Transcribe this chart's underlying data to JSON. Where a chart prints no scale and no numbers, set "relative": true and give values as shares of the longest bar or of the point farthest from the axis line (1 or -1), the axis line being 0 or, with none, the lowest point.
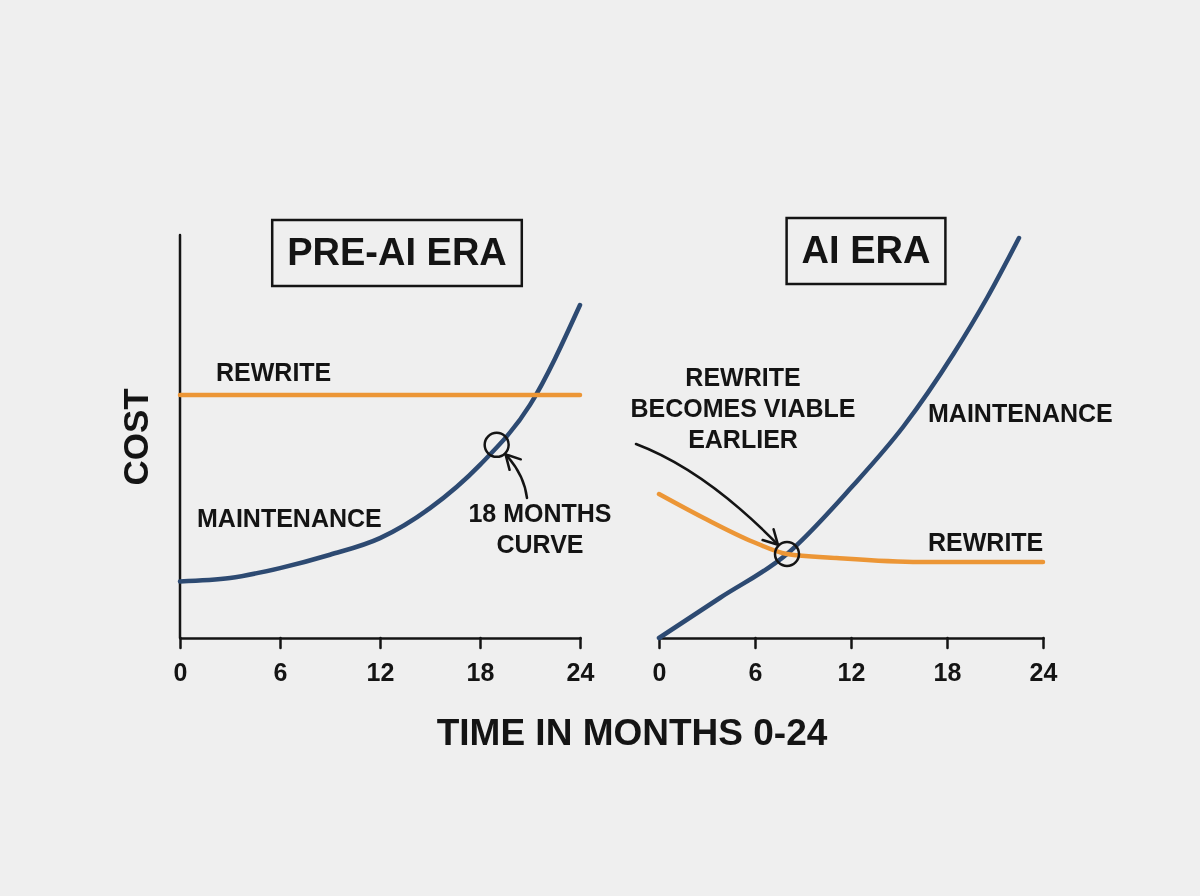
{
  "chart_data": [
    {
      "type": "line",
      "title": "PRE-AI ERA",
      "xlabel": "TIME IN MONTHS 0-24",
      "ylabel": "COST",
      "relative": true,
      "xlim": [
        0,
        24
      ],
      "xticks": [
        0,
        6,
        12,
        18,
        24
      ],
      "series": [
        {
          "name": "MAINTENANCE",
          "color": "#2d4a72",
          "x": [
            0,
            3,
            6,
            9,
            12,
            15,
            18,
            21,
            24
          ],
          "values": [
            0.17,
            0.18,
            0.21,
            0.25,
            0.3,
            0.39,
            0.52,
            0.7,
            1
          ]
        },
        {
          "name": "REWRITE",
          "color": "#ec9636",
          "x": [
            0,
            24
          ],
          "values": [
            0.73,
            0.73
          ]
        }
      ],
      "annotations": [
        {
          "text": "18 MONTHS CURVE",
          "x": 19,
          "y": 0.58
        }
      ]
    },
    {
      "type": "line",
      "title": "AI ERA",
      "relative": true,
      "xlim": [
        0,
        24
      ],
      "xticks": [
        0,
        6,
        12,
        18,
        24
      ],
      "series": [
        {
          "name": "MAINTENANCE",
          "color": "#2d4a72",
          "x": [
            0,
            3.8,
            8,
            12.1,
            15.3,
            18.4,
            20.5,
            22.5
          ],
          "values": [
            0,
            0.1,
            0.21,
            0.38,
            0.53,
            0.71,
            0.85,
            1
          ]
        },
        {
          "name": "REWRITE",
          "color": "#ec9636",
          "x": [
            0,
            2.8,
            5.9,
            8,
            11.1,
            16.3,
            20.5,
            24
          ],
          "values": [
            0.36,
            0.3,
            0.24,
            0.21,
            0.2,
            0.19,
            0.19,
            0.19
          ]
        }
      ],
      "annotations": [
        "REWRITE BECOMES VIABLE EARLIER"
      ]
    }
  ]
}
